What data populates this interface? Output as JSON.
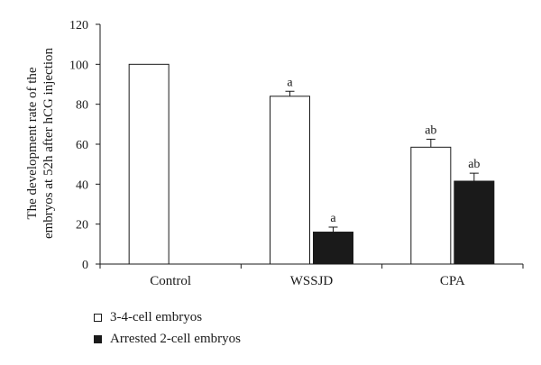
{
  "chart_data": {
    "type": "bar",
    "categories": [
      "Control",
      "WSSJD",
      "CPA"
    ],
    "series": [
      {
        "name": "3-4-cell embryos",
        "values": [
          100,
          84,
          58.5
        ],
        "errors": [
          0,
          2.5,
          4
        ],
        "labels": [
          "",
          "a",
          "ab"
        ],
        "color": "#ffffff"
      },
      {
        "name": "Arrested 2-cell embryos",
        "values": [
          0,
          16,
          41.5
        ],
        "errors": [
          0,
          2.5,
          4
        ],
        "labels": [
          "",
          "a",
          "ab"
        ],
        "color": "#1a1a1a"
      }
    ],
    "ylabel_lines": [
      "The development rate of the",
      "embryos at 52h after hCG injection"
    ],
    "xlabel": "",
    "ylim": [
      0,
      120
    ],
    "yticks": [
      0,
      20,
      40,
      60,
      80,
      100,
      120
    ],
    "grid": false,
    "legend_position": "bottom-left"
  }
}
